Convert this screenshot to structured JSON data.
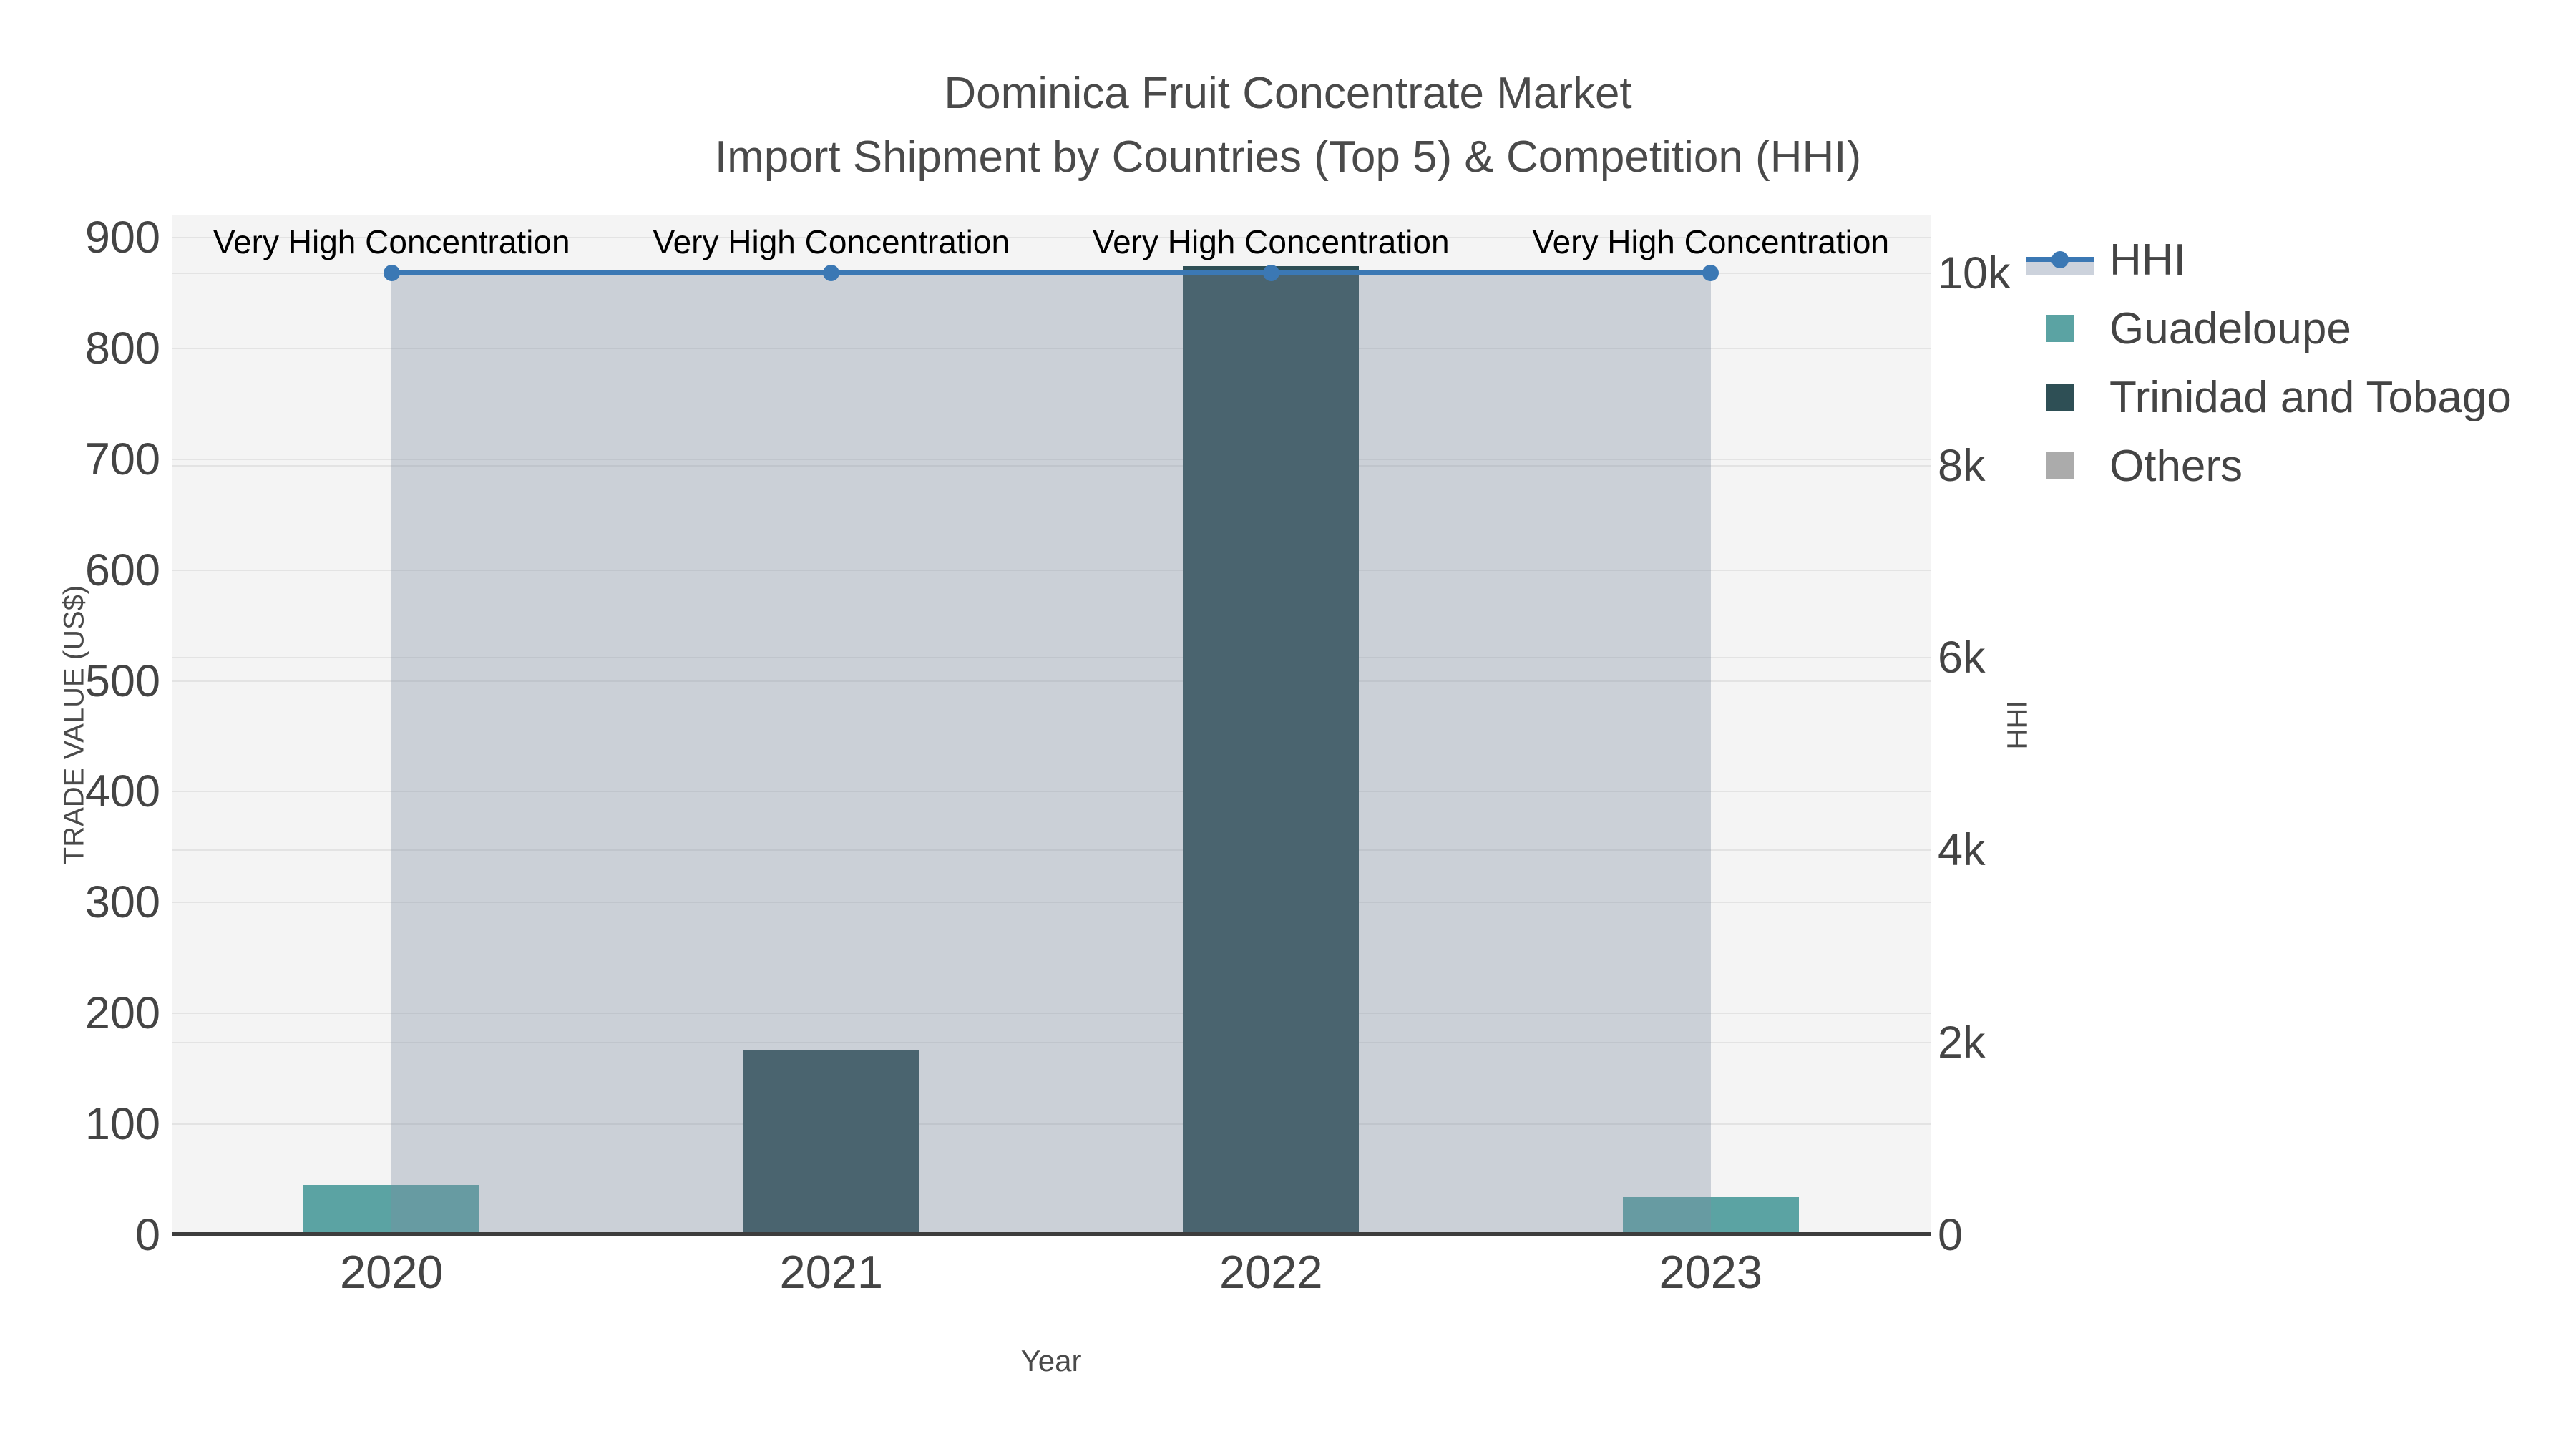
{
  "figure": {
    "title": "Dominica Fruit Concentrate Market",
    "subtitle": "Import Shipment by Countries (Top 5) & Competition (HHI)"
  },
  "chart_data": {
    "type": "bar",
    "subtype": "overlaid bars with HHI line on secondary axis, filled to zero",
    "categories": [
      "2020",
      "2021",
      "2022",
      "2023"
    ],
    "bar_series": [
      {
        "name": "Guadeloupe",
        "color": "#5ba3a3",
        "values": [
          45,
          0,
          0,
          34
        ]
      },
      {
        "name": "Trinidad and Tobago",
        "color": "#2e4f55",
        "values": [
          0,
          167,
          874,
          0
        ]
      },
      {
        "name": "Others",
        "color": "#ababab",
        "values": [
          0,
          0,
          0,
          0
        ]
      }
    ],
    "line_series": {
      "name": "HHI",
      "color": "#3b78b4",
      "fill_color": "rgba(127,140,160,0.35)",
      "values": [
        10000,
        10000,
        10000,
        10000
      ],
      "axis": "right",
      "marker": "circle"
    },
    "annotations": [
      "Very High Concentration",
      "Very High Concentration",
      "Very High Concentration",
      "Very High Concentration"
    ],
    "xlabel": "Year",
    "ylabel_left": "TRADE VALUE (US$)",
    "ylabel_right": "HHI",
    "ylim_left": [
      0,
      920
    ],
    "ylim_right": [
      0,
      10600
    ],
    "yticks_left": {
      "values": [
        0,
        100,
        200,
        300,
        400,
        500,
        600,
        700,
        800,
        900
      ],
      "labels": [
        "0",
        "100",
        "200",
        "300",
        "400",
        "500",
        "600",
        "700",
        "800",
        "900"
      ]
    },
    "yticks_right": {
      "values": [
        0,
        2000,
        4000,
        6000,
        8000,
        10000
      ],
      "labels": [
        "0",
        "2k",
        "4k",
        "6k",
        "8k",
        "10k"
      ]
    },
    "legend_labels": [
      "HHI",
      "Guadeloupe",
      "Trinidad and Tobago",
      "Others"
    ],
    "grid": true,
    "legend_position": "right",
    "colors": {
      "plot_background": "#f4f4f4",
      "gridline": "#e3e3e3",
      "axis_line": "#3d3d3d",
      "tick_text": "#444444",
      "title_text": "#4a4a4a",
      "annotation_text": "#000000"
    }
  }
}
